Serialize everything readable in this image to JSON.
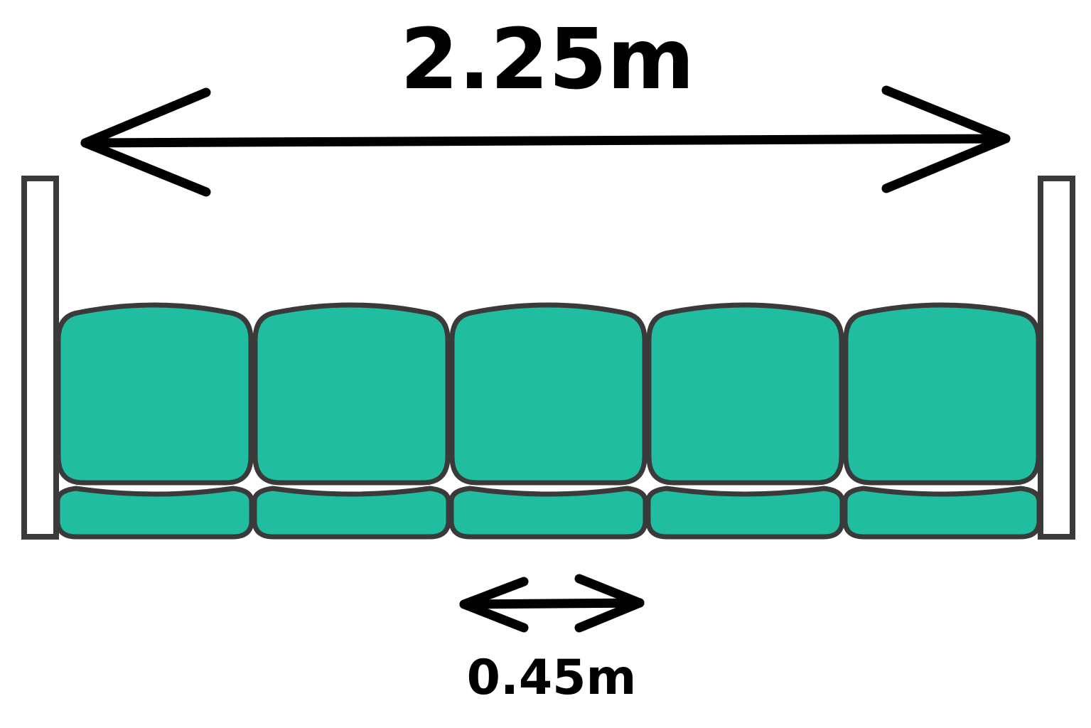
{
  "diagram": {
    "total_width_label": "2.25m",
    "seat_width_label": "0.45m",
    "seat_count": 5
  },
  "colors": {
    "seat_fill": "#21BDA0",
    "outline": "#3a3a3a",
    "arrow": "#000000",
    "end_post_fill": "#ffffff"
  }
}
